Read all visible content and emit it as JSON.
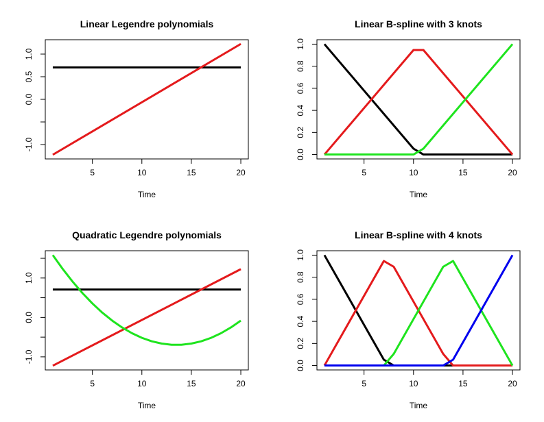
{
  "chart_data": [
    {
      "type": "line",
      "title": "Linear Legendre polynomials",
      "xlabel": "Time",
      "ylabel": "",
      "xlim": [
        1,
        20
      ],
      "ylim": [
        -1.22,
        1.22
      ],
      "xticks": [
        5,
        10,
        15,
        20
      ],
      "xtick_labels": [
        "5",
        "10",
        "15",
        "20"
      ],
      "yticks": [
        -1.0,
        -0.5,
        0.0,
        0.5,
        1.0
      ],
      "ytick_labels": [
        "-1.0",
        "",
        "0.0",
        "0.5",
        "1.0"
      ],
      "grid": false,
      "legend": "none",
      "series": [
        {
          "color": "#000000",
          "x": [
            1,
            20
          ],
          "y": [
            0.707,
            0.707
          ]
        },
        {
          "color": "#e41a1c",
          "x": [
            1,
            20
          ],
          "y": [
            -1.225,
            1.225
          ]
        }
      ]
    },
    {
      "type": "line",
      "title": "Linear B-spline with 3 knots",
      "xlabel": "Time",
      "ylabel": "",
      "xlim": [
        1,
        20
      ],
      "ylim": [
        0,
        1
      ],
      "xticks": [
        5,
        10,
        15,
        20
      ],
      "xtick_labels": [
        "5",
        "10",
        "15",
        "20"
      ],
      "yticks": [
        0.0,
        0.2,
        0.4,
        0.6,
        0.8,
        1.0
      ],
      "ytick_labels": [
        "0.0",
        "0.2",
        "0.4",
        "0.6",
        "0.8",
        "1.0"
      ],
      "grid": false,
      "legend": "none",
      "series": [
        {
          "color": "#000000",
          "x": [
            1,
            10,
            11,
            20
          ],
          "y": [
            1.0,
            0.053,
            0,
            0
          ]
        },
        {
          "color": "#e41a1c",
          "x": [
            1,
            10,
            11,
            20
          ],
          "y": [
            0,
            0.947,
            0.947,
            0
          ]
        },
        {
          "color": "#1ee41e",
          "x": [
            1,
            10,
            11,
            20
          ],
          "y": [
            0,
            0,
            0.053,
            1.0
          ]
        }
      ]
    },
    {
      "type": "line",
      "title": "Quadratic Legendre polynomials",
      "xlabel": "Time",
      "ylabel": "",
      "xlim": [
        1,
        20
      ],
      "ylim": [
        -1.22,
        1.58
      ],
      "xticks": [
        5,
        10,
        15,
        20
      ],
      "xtick_labels": [
        "5",
        "10",
        "15",
        "20"
      ],
      "yticks": [
        -1.0,
        -0.5,
        0.0,
        0.5,
        1.0,
        1.5
      ],
      "ytick_labels": [
        "-1.0",
        "",
        "0.0",
        "",
        "1.0",
        ""
      ],
      "grid": false,
      "legend": "none",
      "series": [
        {
          "color": "#000000",
          "x": [
            1,
            20
          ],
          "y": [
            0.707,
            0.707
          ]
        },
        {
          "color": "#e41a1c",
          "x": [
            1,
            20
          ],
          "y": [
            -1.225,
            1.225
          ]
        },
        {
          "color": "#1ee41e",
          "x": [
            1,
            2,
            3,
            4,
            5,
            6,
            7,
            8,
            9,
            10,
            11,
            12,
            13,
            14,
            15,
            16,
            17,
            18,
            19,
            20
          ],
          "y": [
            1.581,
            1.23,
            0.909,
            0.617,
            0.355,
            0.122,
            -0.08,
            -0.254,
            -0.4,
            -0.517,
            -0.605,
            -0.663,
            -0.693,
            -0.693,
            -0.663,
            -0.605,
            -0.517,
            -0.4,
            -0.254,
            -0.08
          ]
        }
      ]
    },
    {
      "type": "line",
      "title": "Linear B-spline with 4 knots",
      "xlabel": "Time",
      "ylabel": "",
      "xlim": [
        1,
        20
      ],
      "ylim": [
        0,
        1
      ],
      "xticks": [
        5,
        10,
        15,
        20
      ],
      "xtick_labels": [
        "5",
        "10",
        "15",
        "20"
      ],
      "yticks": [
        0.0,
        0.2,
        0.4,
        0.6,
        0.8,
        1.0
      ],
      "ytick_labels": [
        "0.0",
        "0.2",
        "0.4",
        "0.6",
        "0.8",
        "1.0"
      ],
      "grid": false,
      "legend": "none",
      "series": [
        {
          "color": "#000000",
          "x": [
            1,
            7,
            8,
            20
          ],
          "y": [
            1.0,
            0.053,
            0,
            0
          ]
        },
        {
          "color": "#e41a1c",
          "x": [
            1,
            7,
            8,
            13,
            14,
            20
          ],
          "y": [
            0,
            0.947,
            0.895,
            0.105,
            0,
            0
          ]
        },
        {
          "color": "#1ee41e",
          "x": [
            1,
            7,
            8,
            13,
            14,
            20
          ],
          "y": [
            0,
            0,
            0.105,
            0.895,
            0.947,
            0
          ]
        },
        {
          "color": "#0000ee",
          "x": [
            1,
            13,
            14,
            20
          ],
          "y": [
            0,
            0,
            0.053,
            1.0
          ]
        }
      ]
    }
  ]
}
